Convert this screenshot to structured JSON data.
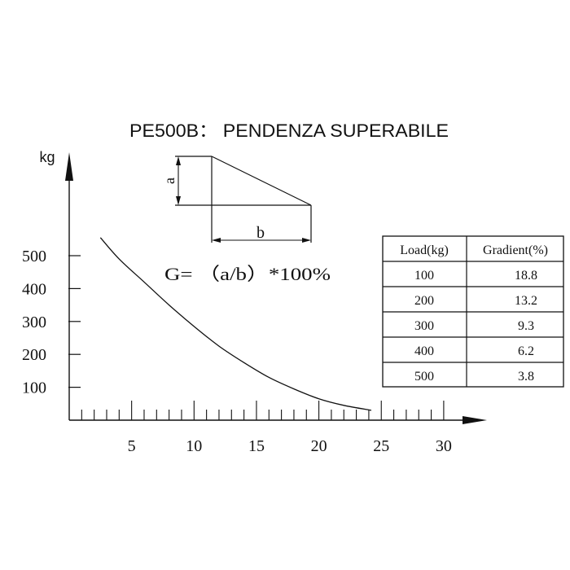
{
  "chart_data": {
    "type": "line",
    "title": "PE500B： PENDENZA SUPERABILE",
    "ylabel": "kg",
    "xlabel": "",
    "y_ticks": [
      "100",
      "200",
      "300",
      "400",
      "500"
    ],
    "x_ticks": [
      "5",
      "10",
      "15",
      "20",
      "25",
      "30"
    ],
    "xlim": [
      0,
      30
    ],
    "ylim": [
      0,
      500
    ],
    "series": [
      {
        "x": [
          2.5,
          4,
          6,
          8,
          10,
          12,
          14,
          16,
          18,
          20,
          22,
          24.2
        ],
        "y": [
          555,
          490,
          420,
          350,
          285,
          225,
          175,
          130,
          95,
          65,
          45,
          30
        ]
      }
    ],
    "grid": false,
    "legend": "none"
  },
  "diagram": {
    "label_a": "a",
    "label_b": "b",
    "formula": "G= （a/b）*100%"
  },
  "table": {
    "headers": [
      "Load(kg)",
      "Gradient(%)"
    ],
    "rows": [
      [
        "100",
        "18.8"
      ],
      [
        "200",
        "13.2"
      ],
      [
        "300",
        "9.3"
      ],
      [
        "400",
        "6.2"
      ],
      [
        "500",
        "3.8"
      ]
    ]
  }
}
